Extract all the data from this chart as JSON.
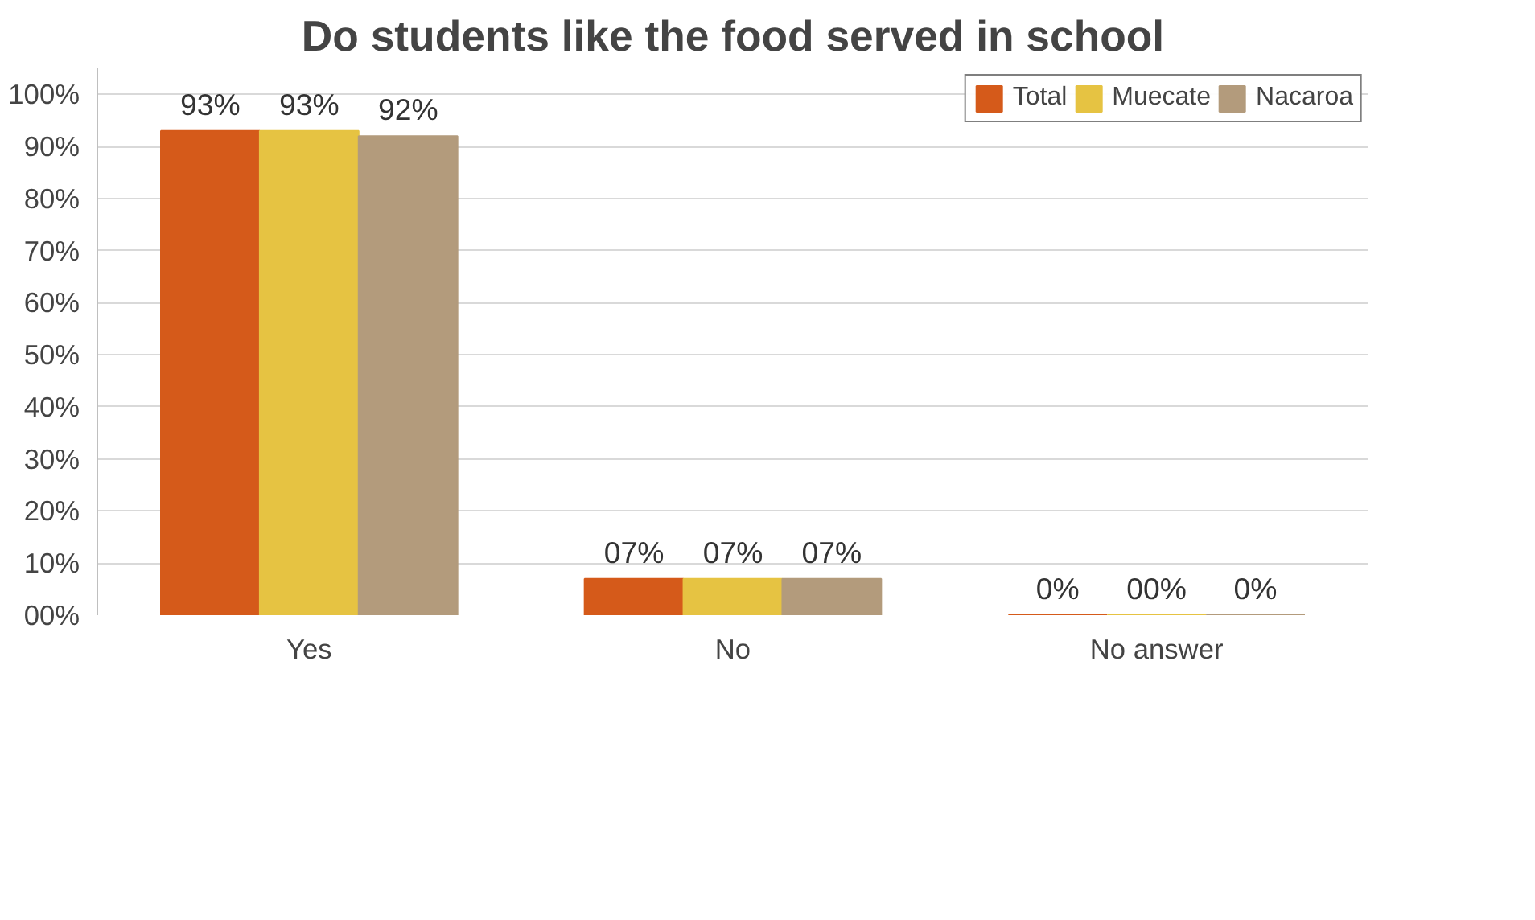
{
  "chart_data": {
    "type": "bar",
    "title": "Do students like the food served in school",
    "categories": [
      "Yes",
      "No",
      "No answer"
    ],
    "series": [
      {
        "name": "Total",
        "color": "#d55a1a",
        "values": [
          93,
          7,
          0
        ],
        "value_labels": [
          "93%",
          "07%",
          "0%"
        ]
      },
      {
        "name": "Muecate",
        "color": "#e6c342",
        "values": [
          93,
          7,
          0
        ],
        "value_labels": [
          "93%",
          "07%",
          "00%"
        ]
      },
      {
        "name": "Nacaroa",
        "color": "#b39b7c",
        "values": [
          92,
          7,
          0
        ],
        "value_labels": [
          "92%",
          "07%",
          "0%"
        ]
      }
    ],
    "ylim": [
      0,
      105
    ],
    "yticks": [
      {
        "value": 0,
        "label": "00%"
      },
      {
        "value": 10,
        "label": "10%"
      },
      {
        "value": 20,
        "label": "20%"
      },
      {
        "value": 30,
        "label": "30%"
      },
      {
        "value": 40,
        "label": "40%"
      },
      {
        "value": 50,
        "label": "50%"
      },
      {
        "value": 60,
        "label": "60%"
      },
      {
        "value": 70,
        "label": "70%"
      },
      {
        "value": 80,
        "label": "80%"
      },
      {
        "value": 90,
        "label": "90%"
      },
      {
        "value": 100,
        "label": "100%"
      }
    ],
    "grid": "y",
    "legend": "top right"
  }
}
